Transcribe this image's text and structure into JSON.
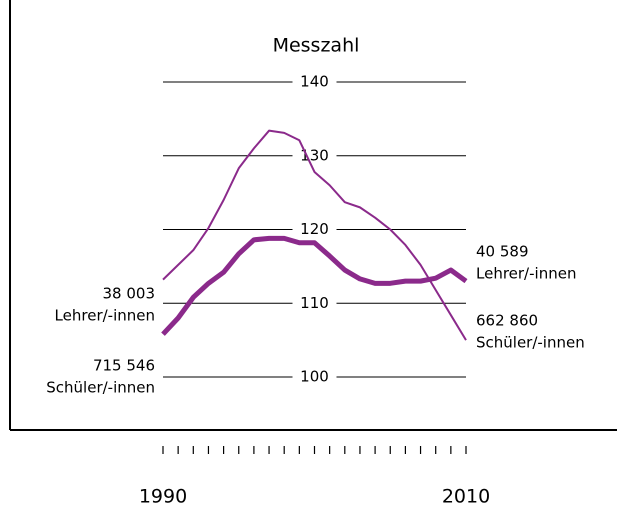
{
  "chart_data": {
    "type": "line",
    "title": "Messzahl",
    "x": [
      1990,
      1991,
      1992,
      1993,
      1994,
      1995,
      1996,
      1997,
      1998,
      1999,
      2000,
      2001,
      2002,
      2003,
      2004,
      2005,
      2006,
      2007,
      2008,
      2009,
      2010
    ],
    "series": [
      {
        "name": "Schüler/-innen",
        "color": "#8b2a8b",
        "width": 2,
        "values": [
          113.2,
          115.2,
          117.2,
          120.2,
          124,
          128.3,
          131,
          133.4,
          133.1,
          132.1,
          127.8,
          126,
          123.7,
          123,
          121.6,
          120,
          117.9,
          115.2,
          111.8,
          108.4,
          105
        ]
      },
      {
        "name": "Lehrer/-innen",
        "color": "#8b2a8b",
        "width": 5,
        "values": [
          105.8,
          108,
          110.8,
          112.7,
          114.2,
          116.7,
          118.6,
          118.8,
          118.8,
          118.2,
          118.2,
          116.4,
          114.5,
          113.3,
          112.7,
          112.7,
          113,
          113,
          113.4,
          114.5,
          113
        ]
      }
    ],
    "annotations": [
      {
        "number": "38 003",
        "label": "Lehrer/-innen"
      },
      {
        "number": "715 546",
        "label": "Schüler/-innen"
      },
      {
        "number": "40 589",
        "label": "Lehrer/-innen"
      },
      {
        "number": "662 860",
        "label": "Schüler/-innen"
      }
    ],
    "xlim": [
      1990,
      2010
    ],
    "xticks": [
      1990,
      2010
    ],
    "ylim": [
      100,
      140
    ],
    "yticks": [
      100,
      110,
      120,
      130,
      140
    ],
    "grid": true
  }
}
